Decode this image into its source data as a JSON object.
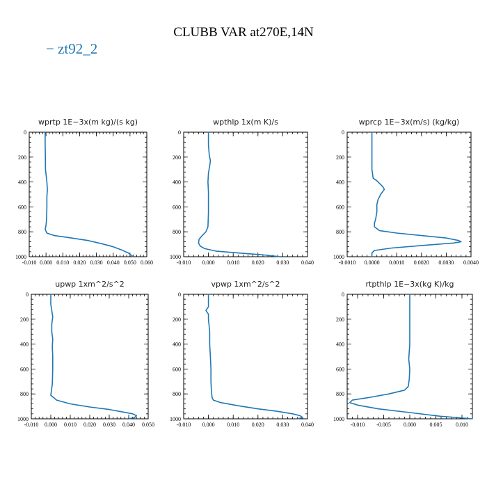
{
  "title": "CLUBB VAR at270E,14N",
  "legend": {
    "dash": "−",
    "label": "zt92_2",
    "color": "#1f77b4"
  },
  "chart_data": [
    {
      "type": "line",
      "title": "wprtp  1E−3x(m kg)/(s kg)",
      "xlim": [
        -0.01,
        0.06
      ],
      "xticks": [
        -0.01,
        0.0,
        0.01,
        0.02,
        0.03,
        0.04,
        0.05,
        0.06
      ],
      "xticklabels": [
        "-0.010",
        "0.000",
        "0.010",
        "0.020",
        "0.030",
        "0.040",
        "0.050",
        "0.060"
      ],
      "ylim": [
        1000,
        0
      ],
      "yticks": [
        0,
        200,
        400,
        600,
        800,
        1000
      ],
      "series": [
        {
          "color": "#1f77b4",
          "x": [
            -0.0005,
            -0.0005,
            -0.0004,
            -0.0003,
            0.0005,
            0.0008,
            0.0005,
            0.0005,
            0.0003,
            0.0,
            -0.0005,
            0.0005,
            0.005,
            0.015,
            0.025,
            0.033,
            0.04,
            0.045,
            0.049,
            0.052
          ],
          "y": [
            0,
            100,
            200,
            300,
            400,
            460,
            520,
            600,
            700,
            750,
            780,
            810,
            830,
            850,
            870,
            895,
            920,
            945,
            970,
            1000
          ]
        }
      ]
    },
    {
      "type": "line",
      "title": "wpthlp  1x(m K)/s",
      "xlim": [
        -0.01,
        0.04
      ],
      "xticks": [
        -0.01,
        0.0,
        0.01,
        0.02,
        0.03,
        0.04
      ],
      "xticklabels": [
        "-0.010",
        "0.000",
        "0.010",
        "0.020",
        "0.030",
        "0.040"
      ],
      "ylim": [
        1000,
        0
      ],
      "yticks": [
        0,
        200,
        400,
        600,
        800,
        1000
      ],
      "series": [
        {
          "color": "#1f77b4",
          "x": [
            0.0,
            0.0,
            0.0003,
            0.0008,
            0.0005,
            0.0,
            -0.0002,
            0.0,
            0.0,
            0.0,
            -0.0002,
            -0.001,
            -0.0025,
            -0.0038,
            -0.004,
            -0.0033,
            -0.0015,
            0.003,
            0.012,
            0.022,
            0.029
          ],
          "y": [
            0,
            100,
            180,
            230,
            270,
            330,
            400,
            480,
            560,
            650,
            760,
            800,
            830,
            860,
            890,
            915,
            935,
            955,
            970,
            985,
            1000
          ]
        }
      ]
    },
    {
      "type": "line",
      "title": "wprcp  1E−3x(m/s) (kg/kg)",
      "xlim": [
        -0.001,
        0.004
      ],
      "xticks": [
        -0.001,
        0.0,
        0.001,
        0.002,
        0.003,
        0.004
      ],
      "xticklabels": [
        "-0.0010",
        "0.0000",
        "0.0010",
        "0.0020",
        "0.0030",
        "0.0040"
      ],
      "ylim": [
        1000,
        0
      ],
      "yticks": [
        0,
        200,
        400,
        600,
        800,
        1000
      ],
      "series": [
        {
          "color": "#1f77b4",
          "x": [
            0.0,
            0.0,
            0.0,
            5e-05,
            0.0002,
            0.0003,
            0.00045,
            0.0005,
            0.00035,
            0.00025,
            0.0002,
            0.0002,
            0.00015,
            0.0001,
            0.0001,
            0.0003,
            0.001,
            0.002,
            0.003,
            0.0035,
            0.0036,
            0.0033,
            0.002,
            0.0008,
            0.0001,
            0.0,
            0.0
          ],
          "y": [
            0,
            150,
            300,
            370,
            390,
            410,
            440,
            460,
            500,
            540,
            580,
            640,
            700,
            730,
            760,
            790,
            810,
            830,
            850,
            870,
            880,
            890,
            910,
            930,
            950,
            970,
            1000
          ]
        }
      ]
    },
    {
      "type": "line",
      "title": "upwp  1xm^2/s^2",
      "xlim": [
        -0.01,
        0.05
      ],
      "xticks": [
        -0.01,
        0.0,
        0.01,
        0.02,
        0.03,
        0.04,
        0.05
      ],
      "xticklabels": [
        "-0.010",
        "0.000",
        "0.010",
        "0.020",
        "0.030",
        "0.040",
        "0.050"
      ],
      "ylim": [
        1000,
        0
      ],
      "yticks": [
        0,
        200,
        400,
        600,
        800,
        1000
      ],
      "series": [
        {
          "color": "#1f77b4",
          "x": [
            0.0,
            0.0,
            0.0005,
            0.001,
            0.0005,
            0.0005,
            0.001,
            0.0008,
            0.001,
            0.001,
            0.0008,
            0.0,
            0.003,
            0.01,
            0.02,
            0.03,
            0.037,
            0.042,
            0.044,
            0.043,
            0.04
          ],
          "y": [
            0,
            80,
            130,
            180,
            240,
            300,
            360,
            420,
            500,
            600,
            720,
            810,
            850,
            880,
            905,
            925,
            945,
            960,
            975,
            990,
            1000
          ]
        }
      ]
    },
    {
      "type": "line",
      "title": "vpwp  1xm^2/s^2",
      "xlim": [
        -0.01,
        0.04
      ],
      "xticks": [
        -0.01,
        0.0,
        0.01,
        0.02,
        0.03,
        0.04
      ],
      "xticklabels": [
        "-0.010",
        "0.000",
        "0.010",
        "0.020",
        "0.030",
        "0.040"
      ],
      "ylim": [
        1000,
        0
      ],
      "yticks": [
        0,
        200,
        400,
        600,
        800,
        1000
      ],
      "series": [
        {
          "color": "#1f77b4",
          "x": [
            0.0,
            0.0,
            -0.001,
            0.0,
            0.0,
            0.0005,
            0.0005,
            0.0008,
            0.001,
            0.001,
            0.0012,
            0.0015,
            0.002,
            0.005,
            0.012,
            0.02,
            0.028,
            0.034,
            0.037,
            0.038,
            0.036
          ],
          "y": [
            0,
            100,
            130,
            160,
            200,
            300,
            400,
            500,
            600,
            700,
            780,
            830,
            850,
            870,
            895,
            920,
            940,
            960,
            975,
            990,
            1000
          ]
        }
      ]
    },
    {
      "type": "line",
      "title": "rtpthlp  1E−3x(kg K)/kg",
      "xlim": [
        -0.012,
        0.012
      ],
      "xticks": [
        -0.01,
        -0.005,
        0.0,
        0.005,
        0.01
      ],
      "xticklabels": [
        "-0.010",
        "-0.005",
        "0.000",
        "0.005",
        "0.010"
      ],
      "ylim": [
        1000,
        0
      ],
      "yticks": [
        0,
        200,
        400,
        600,
        800,
        1000
      ],
      "series": [
        {
          "color": "#1f77b4",
          "x": [
            0.0,
            0.0,
            0.0,
            -0.0002,
            0.0,
            -0.0001,
            -0.0003,
            -0.001,
            -0.004,
            -0.008,
            -0.011,
            -0.0115,
            -0.01,
            -0.006,
            0.0,
            0.006,
            0.012
          ],
          "y": [
            0,
            200,
            400,
            520,
            600,
            680,
            740,
            770,
            800,
            830,
            850,
            870,
            890,
            920,
            950,
            980,
            1000
          ]
        }
      ]
    }
  ]
}
